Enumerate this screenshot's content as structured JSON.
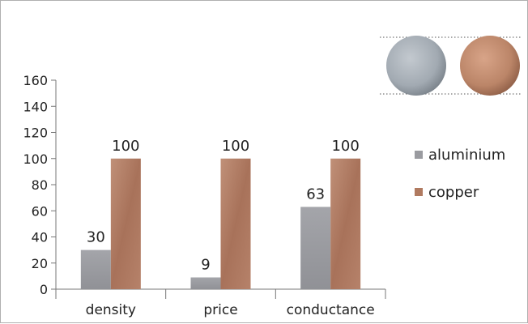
{
  "chart_data": {
    "type": "bar",
    "categories": [
      "density",
      "price",
      "conductance"
    ],
    "series": [
      {
        "name": "aluminium",
        "values": [
          30,
          9,
          63
        ],
        "color": "#9a9ba0"
      },
      {
        "name": "copper",
        "values": [
          100,
          100,
          100
        ],
        "color": "#b07a60"
      }
    ],
    "yticks": [
      0,
      20,
      40,
      60,
      80,
      100,
      120,
      140,
      160
    ],
    "ylim": [
      0,
      160
    ],
    "grid": false,
    "legend_position": "right",
    "data_labels": true
  },
  "images": {
    "aluminium_disc_color": "#a5adb5",
    "copper_disc_color": "#c08a6c"
  }
}
